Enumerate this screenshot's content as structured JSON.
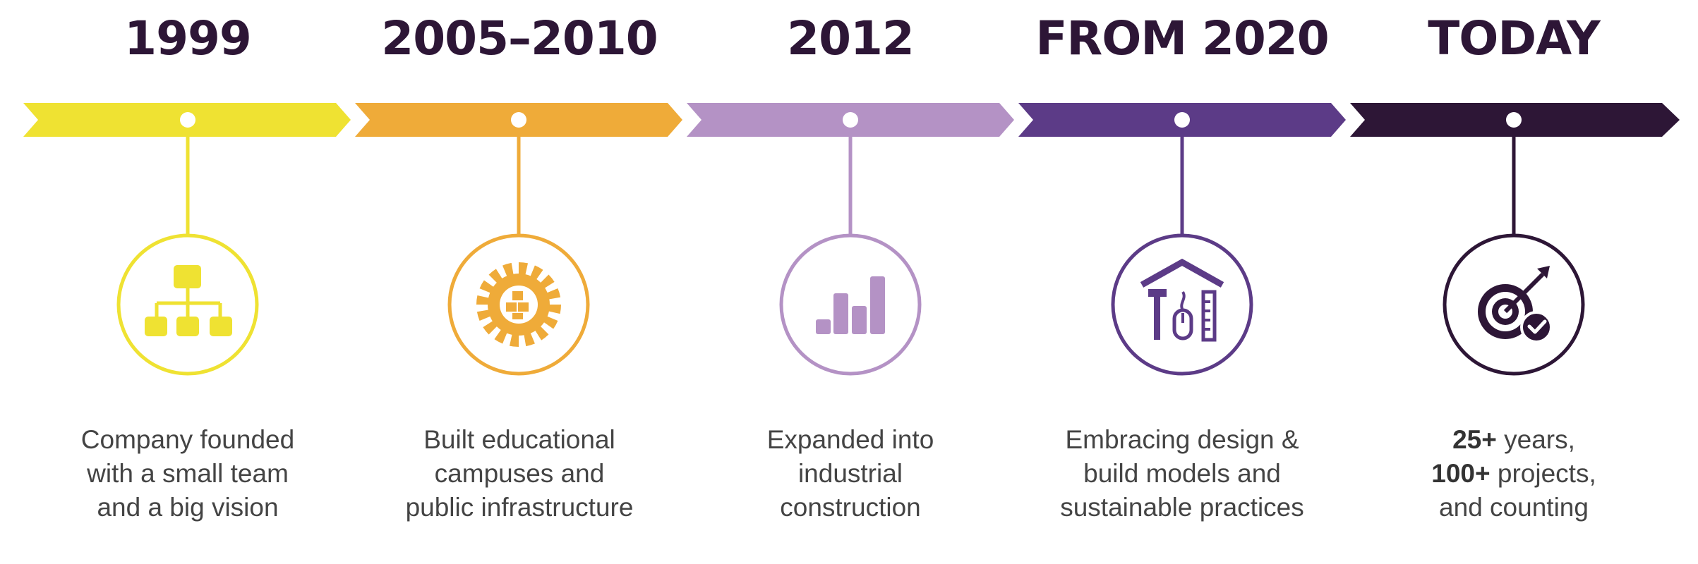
{
  "milestones": [
    {
      "heading": "1999",
      "color": "#efe232",
      "icon": "org-chart-icon",
      "lines": [
        "Company founded",
        "with a small team",
        "and a big vision"
      ]
    },
    {
      "heading": "2005–2010",
      "color": "#efab39",
      "icon": "gear-blocks-icon",
      "lines": [
        "Built educational",
        "campuses and",
        "public infrastructure"
      ]
    },
    {
      "heading": "2012",
      "color": "#b492c5",
      "icon": "bar-chart-icon",
      "lines": [
        "Expanded into",
        "industrial",
        "construction"
      ]
    },
    {
      "heading": "FROM 2020",
      "color": "#5c3b87",
      "icon": "house-tools-icon",
      "lines": [
        "Embracing design &",
        "build models and",
        "sustainable practices"
      ]
    },
    {
      "heading": "TODAY",
      "color": "#2d1636",
      "icon": "target-check-icon",
      "lines_rich": [
        {
          "bold": "25+",
          "text": " years,"
        },
        {
          "bold": "100+",
          "text": " projects,"
        },
        {
          "bold": "",
          "text": "and counting"
        }
      ]
    }
  ]
}
